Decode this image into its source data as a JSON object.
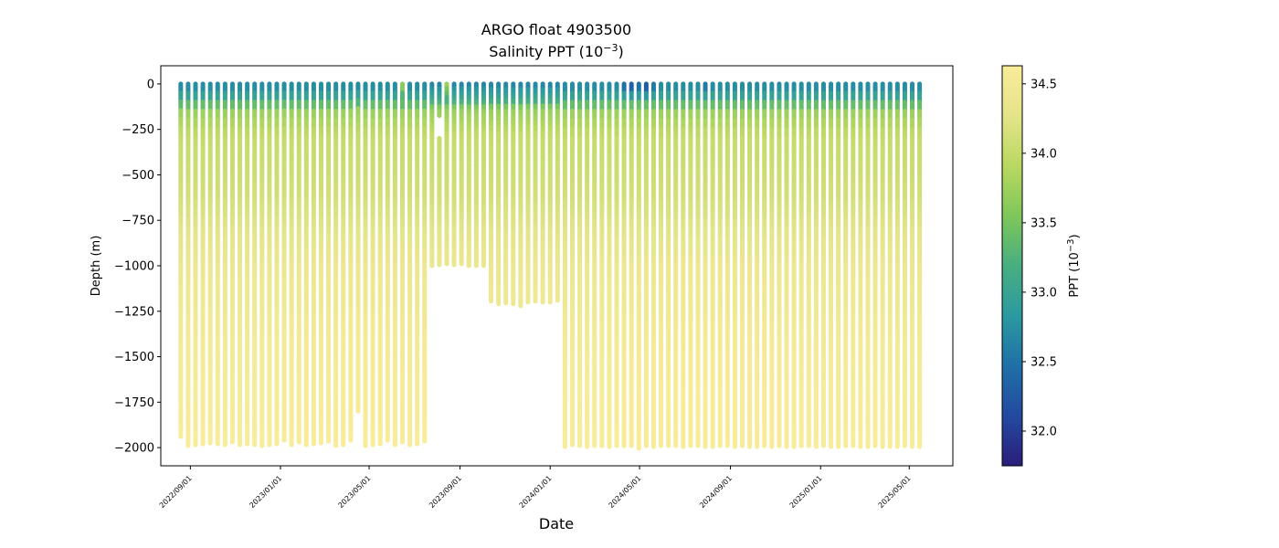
{
  "chart_data": {
    "type": "scatter",
    "title_line1": "ARGO float 4903500",
    "title_line2_prefix": "Salinity PPT (10",
    "title_line2_exp": "−3",
    "title_line2_suffix": ")",
    "xlabel": "Date",
    "ylabel": "Depth (m)",
    "colorbar_label_prefix": "PPT (10",
    "colorbar_label_exp": "−3",
    "colorbar_label_suffix": ")",
    "colormap": "YlGnBu_r",
    "color_stops": [
      "#2a1d7a",
      "#234aa0",
      "#1f6fa6",
      "#2b9aa0",
      "#48ae80",
      "#7ec75a",
      "#b9d860",
      "#e4e48a",
      "#f9ec9a"
    ],
    "ylim": [
      -2100,
      100
    ],
    "yticks": [
      0,
      -250,
      -500,
      -750,
      -1000,
      -1250,
      -1500,
      -1750,
      -2000
    ],
    "ytick_labels": [
      "0",
      "−250",
      "−500",
      "−750",
      "−1000",
      "−1250",
      "−1500",
      "−1750",
      "−2000"
    ],
    "xlim_days": [
      -40,
      1032
    ],
    "x_origin": "2022-09-01",
    "xticks_days": [
      0,
      122,
      242,
      365,
      487,
      608,
      731,
      853,
      973
    ],
    "xtick_labels": [
      "2022/09/01",
      "2023/01/01",
      "2023/05/01",
      "2023/09/01",
      "2024/01/01",
      "2024/05/01",
      "2024/09/01",
      "2025/01/01",
      "2025/05/01"
    ],
    "colorbar_range": [
      31.75,
      34.63
    ],
    "colorbar_ticks": [
      32.0,
      32.5,
      33.0,
      33.5,
      34.0,
      34.5
    ],
    "colorbar_tick_labels": [
      "32.0",
      "32.5",
      "33.0",
      "33.5",
      "34.0",
      "34.5"
    ],
    "profile_interval_days": 10,
    "profiles_start_day": -13,
    "profile_bottom_depths": [
      1940,
      1990,
      1985,
      1980,
      1975,
      1980,
      1985,
      1970,
      1985,
      1980,
      1985,
      1990,
      1985,
      1980,
      1960,
      1985,
      1970,
      1985,
      1980,
      1975,
      1965,
      1990,
      1985,
      1960,
      1800,
      1990,
      1985,
      1980,
      1960,
      1985,
      1970,
      1985,
      1980,
      1965,
      1000,
      995,
      990,
      995,
      990,
      1000,
      1000,
      1000,
      1195,
      1210,
      1205,
      1210,
      1220,
      1200,
      1195,
      1200,
      1200,
      1190,
      1995,
      1985,
      1990,
      1995,
      1990,
      1990,
      1995,
      1990,
      1990,
      1990,
      2005,
      1990,
      1995,
      1990,
      1990,
      1990,
      1995,
      1990,
      1990,
      1995,
      1995,
      1990,
      1990,
      1995,
      1990,
      1995,
      1995,
      1990,
      1995,
      1990,
      1995,
      1995,
      1990,
      1990,
      1995,
      1990,
      1995,
      1995,
      1990,
      1990,
      1995,
      1995,
      1990,
      1995,
      1995,
      1995,
      1990,
      1995,
      1995
    ],
    "surface_salinity": [
      32.6,
      32.6,
      32.6,
      32.6,
      32.6,
      32.6,
      32.6,
      32.6,
      32.6,
      32.6,
      32.6,
      32.6,
      32.6,
      32.6,
      32.6,
      32.6,
      32.6,
      32.6,
      32.6,
      32.6,
      32.6,
      32.6,
      32.6,
      32.6,
      32.6,
      32.6,
      32.6,
      32.6,
      32.6,
      32.6,
      33.8,
      32.6,
      32.6,
      32.6,
      32.6,
      32.6,
      33.8,
      32.6,
      32.6,
      32.6,
      32.6,
      32.6,
      32.6,
      32.6,
      32.6,
      32.6,
      32.6,
      32.6,
      32.6,
      32.6,
      32.6,
      32.6,
      32.6,
      32.6,
      32.6,
      32.6,
      32.6,
      32.6,
      32.6,
      32.6,
      32.3,
      32.1,
      32.3,
      32.0,
      32.4,
      32.6,
      32.6,
      32.6,
      32.6,
      32.6,
      32.6,
      32.4,
      32.6,
      32.6,
      32.6,
      32.6,
      32.6,
      32.6,
      32.6,
      32.6,
      32.6,
      32.6,
      32.6,
      32.6,
      32.6,
      32.6,
      32.6,
      32.6,
      32.6,
      32.6,
      32.6,
      32.6,
      32.6,
      32.6,
      32.6,
      32.6,
      32.6,
      32.6,
      32.6,
      32.6,
      32.6
    ],
    "salinity_depth_profile": [
      {
        "depth": 0,
        "delta": 0
      },
      {
        "depth": 100,
        "s": 33.1
      },
      {
        "depth": 150,
        "s": 33.7
      },
      {
        "depth": 300,
        "s": 34.0
      },
      {
        "depth": 600,
        "s": 34.1
      },
      {
        "depth": 1000,
        "s": 34.4
      },
      {
        "depth": 1500,
        "s": 34.55
      },
      {
        "depth": 2000,
        "s": 34.62
      }
    ],
    "data_gaps": [
      {
        "profile_index": 35,
        "from_depth": 190,
        "to_depth": 290
      }
    ]
  }
}
